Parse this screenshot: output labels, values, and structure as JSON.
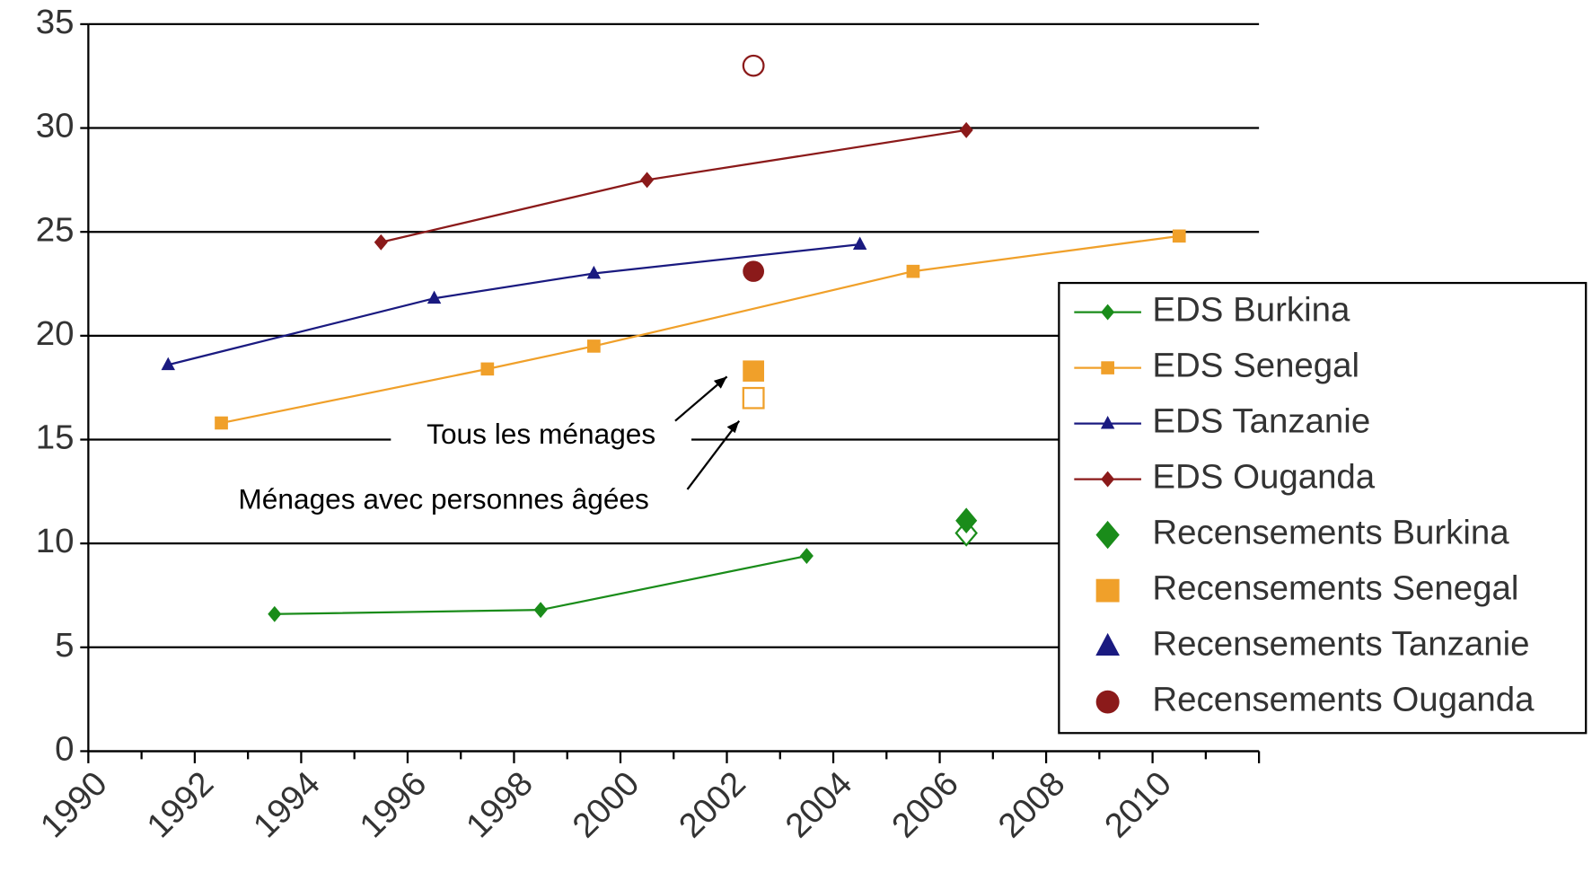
{
  "chart_data": {
    "type": "line",
    "xlim": [
      1990,
      2012
    ],
    "xticks": [
      1990,
      1992,
      1994,
      1996,
      1998,
      2000,
      2002,
      2004,
      2006,
      2008,
      2010
    ],
    "ylim": [
      0,
      35
    ],
    "yticks": [
      0,
      5,
      10,
      15,
      20,
      25,
      30,
      35
    ],
    "grid": true,
    "legend": "right",
    "annotations": [
      {
        "text": "Tous les ménages"
      },
      {
        "text": "Ménages avec personnes âgées"
      }
    ],
    "series": [
      {
        "name": "EDS Burkina",
        "color": "#1a8c1a",
        "marker": "diamond",
        "line": true,
        "x": [
          1993.5,
          1998.5,
          2003.5
        ],
        "values": [
          6.6,
          6.8,
          9.4
        ]
      },
      {
        "name": "EDS Senegal",
        "color": "#f0a02a",
        "marker": "square",
        "line": true,
        "x": [
          1992.5,
          1997.5,
          1999.5,
          2005.5,
          2010.5
        ],
        "values": [
          15.8,
          18.4,
          19.5,
          23.1,
          24.8
        ]
      },
      {
        "name": "EDS Tanzanie",
        "color": "#1a1a80",
        "marker": "triangle",
        "line": true,
        "x": [
          1991.5,
          1996.5,
          1999.5,
          2004.5
        ],
        "values": [
          18.6,
          21.8,
          23.0,
          24.4
        ]
      },
      {
        "name": "EDS Ouganda",
        "color": "#8b1a1a",
        "marker": "diamond",
        "line": true,
        "x": [
          1995.5,
          2000.5,
          2006.5
        ],
        "values": [
          24.5,
          27.5,
          29.9
        ]
      },
      {
        "name": "Recensements Burkina",
        "color": "#1a8c1a",
        "marker": "diamond",
        "line": false,
        "x": [
          2006.5
        ],
        "values": [
          11.1
        ],
        "values_elderly": [
          10.5
        ]
      },
      {
        "name": "Recensements Senegal",
        "color": "#f0a02a",
        "marker": "square",
        "line": false,
        "x": [
          2002.5
        ],
        "values": [
          18.3
        ],
        "values_elderly": [
          17.0
        ]
      },
      {
        "name": "Recensements Tanzanie",
        "color": "#1a1a80",
        "marker": "triangle",
        "line": false,
        "x": [],
        "values": [],
        "values_elderly": []
      },
      {
        "name": "Recensements Ouganda",
        "color": "#8b1a1a",
        "marker": "circle",
        "line": false,
        "x": [
          2002.5
        ],
        "values": [
          23.1
        ],
        "values_elderly": [
          33.0
        ]
      }
    ]
  }
}
